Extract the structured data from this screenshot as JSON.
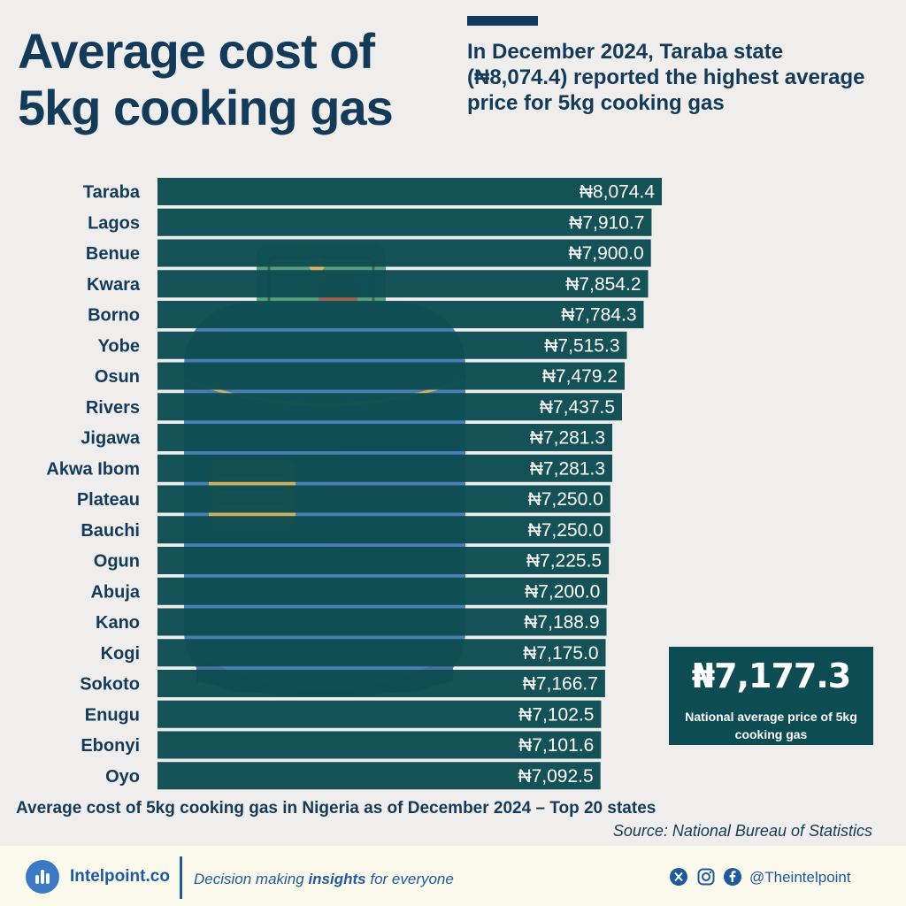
{
  "header": {
    "title": "Average cost of 5kg cooking gas",
    "headline": "In December 2024, Taraba state (₦8,074.4) reported the highest average price for 5kg cooking gas"
  },
  "chart_data": {
    "type": "bar",
    "orientation": "horizontal",
    "title": "Average cost of 5kg cooking gas",
    "xlabel": "",
    "ylabel": "",
    "categories": [
      "Taraba",
      "Lagos",
      "Benue",
      "Kwara",
      "Borno",
      "Yobe",
      "Osun",
      "Rivers",
      "Jigawa",
      "Akwa Ibom",
      "Plateau",
      "Bauchi",
      "Ogun",
      "Abuja",
      "Kano",
      "Kogi",
      "Sokoto",
      "Enugu",
      "Ebonyi",
      "Oyo"
    ],
    "values": [
      8074.4,
      7910.7,
      7900.0,
      7854.2,
      7784.3,
      7515.3,
      7479.2,
      7437.5,
      7281.3,
      7281.3,
      7250.0,
      7250.0,
      7225.5,
      7200.0,
      7188.9,
      7175.0,
      7166.7,
      7102.5,
      7101.6,
      7092.5
    ],
    "value_labels": [
      "₦8,074.4",
      "₦7,910.7",
      "₦7,900.0",
      "₦7,854.2",
      "₦7,784.3",
      "₦7,515.3",
      "₦7,479.2",
      "₦7,437.5",
      "₦7,281.3",
      "₦7,281.3",
      "₦7,250.0",
      "₦7,250.0",
      "₦7,225.5",
      "₦7,200.0",
      "₦7,188.9",
      "₦7,175.0",
      "₦7,166.7",
      "₦7,102.5",
      "₦7,101.6",
      "₦7,092.5"
    ],
    "xlim": [
      0,
      8074.4
    ],
    "bar_color": "#0d4c52"
  },
  "national": {
    "value": "₦7,177.3",
    "caption": "National average price of 5kg cooking gas"
  },
  "caption": "Average cost of 5kg cooking gas in Nigeria as of December 2024 – Top 20 states",
  "source": "Source: National Bureau of Statistics",
  "footer": {
    "brand": "Intelpoint.co",
    "tagline_pre": "Decision making ",
    "tagline_bold": "insights",
    "tagline_post": " for everyone",
    "handle": "@Theintelpoint",
    "icons": [
      "x-icon",
      "instagram-icon",
      "facebook-icon"
    ]
  },
  "colors": {
    "primary": "#143a5a",
    "bar": "#0d4c52",
    "background": "#efeeec",
    "brand_blue": "#1f5aa0"
  }
}
